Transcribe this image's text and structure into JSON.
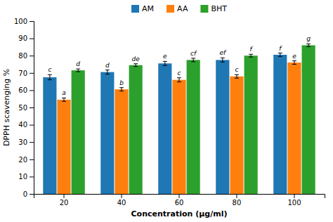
{
  "chart_data": {
    "type": "bar",
    "xlabel": "Concentration (μg/ml)",
    "ylabel": "DPPH scavenging %",
    "categories": [
      20,
      40,
      60,
      80,
      100
    ],
    "series": [
      {
        "name": "AM",
        "values": [
          67.5,
          70.5,
          75.5,
          77.5,
          80.5
        ],
        "errors": [
          1.5,
          1.2,
          1.2,
          1.2,
          1.0
        ],
        "annotations": [
          "c",
          "d",
          "e",
          "ef",
          "f"
        ]
      },
      {
        "name": "AA",
        "values": [
          54.5,
          60.5,
          66.0,
          68.0,
          76.0
        ],
        "errors": [
          1.0,
          1.0,
          1.2,
          1.0,
          1.0
        ],
        "annotations": [
          "a",
          "b",
          "c",
          "c",
          "e"
        ]
      },
      {
        "name": "BHT",
        "values": [
          71.5,
          74.5,
          77.5,
          80.0,
          86.0
        ],
        "errors": [
          0.8,
          0.8,
          1.0,
          0.8,
          0.8
        ],
        "annotations": [
          "d",
          "de",
          "cf",
          "f",
          "g"
        ]
      }
    ],
    "ylim": [
      0,
      100
    ],
    "yticks": [
      0,
      10,
      20,
      30,
      40,
      50,
      60,
      70,
      80,
      90,
      100
    ],
    "grid": false,
    "legend": "top"
  }
}
